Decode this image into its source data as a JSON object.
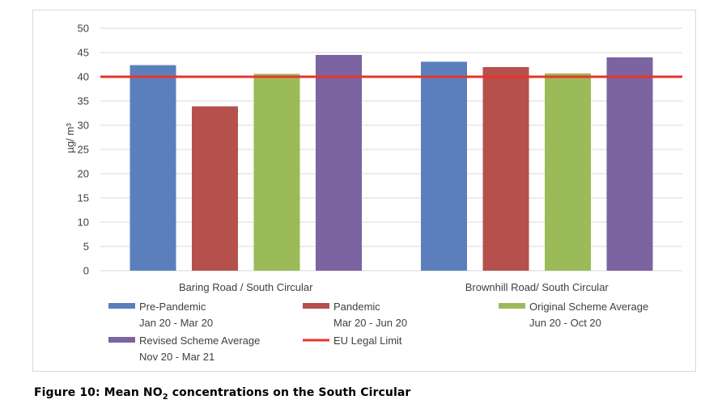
{
  "chart_data": {
    "type": "bar",
    "ylabel": "µg/ m³",
    "ylim": [
      0,
      50
    ],
    "yticks": [
      0,
      5,
      10,
      15,
      20,
      25,
      30,
      35,
      40,
      45,
      50
    ],
    "grid": true,
    "categories": [
      "Baring Road / South Circular",
      "Brownhill Road/ South Circular"
    ],
    "series": [
      {
        "name": "Pre-Pandemic",
        "name_line2": "Jan 20 - Mar 20",
        "color": "#5b7fbc",
        "values": [
          42.4,
          43.1
        ]
      },
      {
        "name": "Pandemic",
        "name_line2": "Mar 20 - Jun 20",
        "color": "#b5504c",
        "values": [
          33.9,
          42.0
        ]
      },
      {
        "name": "Original Scheme Average",
        "name_line2": "Jun 20 - Oct 20",
        "color": "#9bbb59",
        "values": [
          40.6,
          40.7
        ]
      },
      {
        "name": "Revised Scheme Average",
        "name_line2": "Nov 20 - Mar 21",
        "color": "#7b64a1",
        "values": [
          44.5,
          44.0
        ]
      }
    ],
    "reference_line": {
      "name": "EU Legal Limit",
      "value": 40,
      "color": "#e8342a"
    },
    "legend_position": "bottom"
  },
  "caption": {
    "prefix": "Figure 10: Mean NO",
    "subscript": "2",
    "suffix": " concentrations on the South Circular"
  }
}
